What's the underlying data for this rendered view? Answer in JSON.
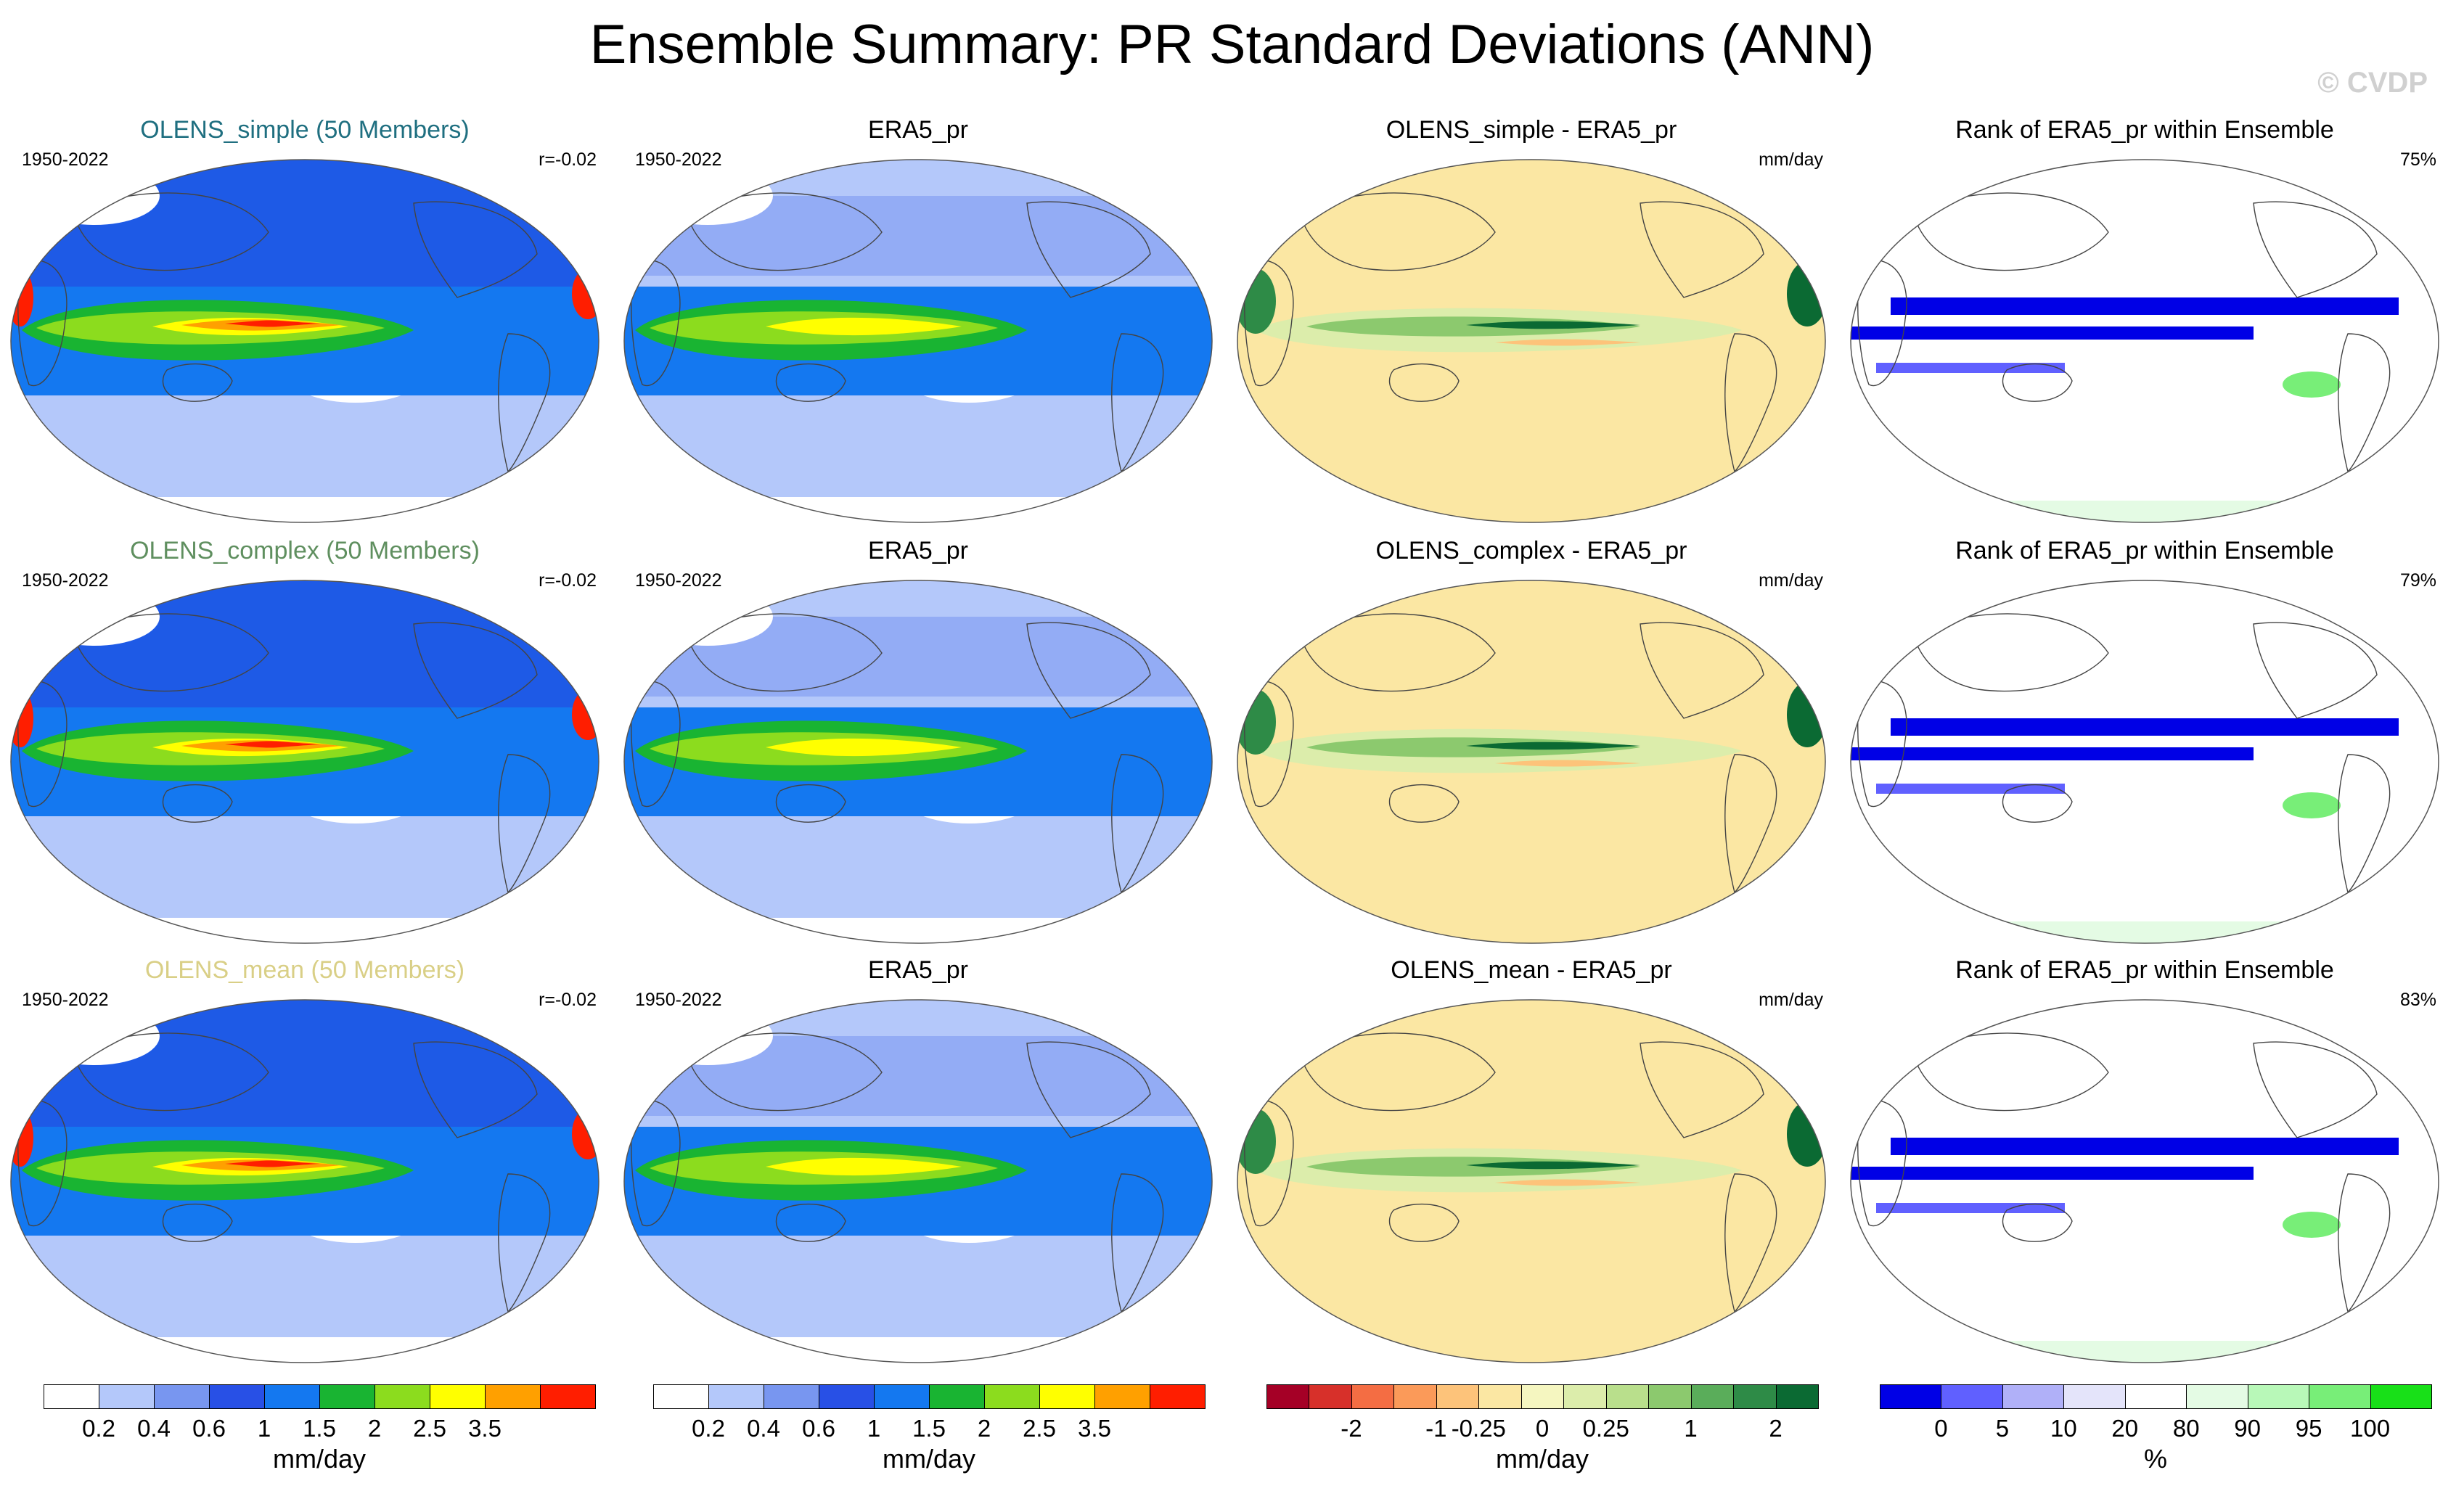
{
  "title": "Ensemble Summary: PR Standard Deviations (ANN)",
  "watermark": "© CVDP",
  "rows": [
    {
      "model_title": "OLENS_simple (50 Members)",
      "model_color": "#1f6f80",
      "period": "1950-2022",
      "corr": "r=-0.02",
      "obs_title": "ERA5_pr",
      "obs_period": "1950-2022",
      "diff_title": "OLENS_simple - ERA5_pr",
      "diff_unit": "mm/day",
      "rank_title": "Rank of ERA5_pr within Ensemble",
      "rank_pct": "75%"
    },
    {
      "model_title": "OLENS_complex (50 Members)",
      "model_color": "#5f8f5f",
      "period": "1950-2022",
      "corr": "r=-0.02",
      "obs_title": "ERA5_pr",
      "obs_period": "1950-2022",
      "diff_title": "OLENS_complex - ERA5_pr",
      "diff_unit": "mm/day",
      "rank_title": "Rank of ERA5_pr within Ensemble",
      "rank_pct": "79%"
    },
    {
      "model_title": "OLENS_mean (50 Members)",
      "model_color": "#d9cf86",
      "period": "1950-2022",
      "corr": "r=-0.02",
      "obs_title": "ERA5_pr",
      "obs_period": "1950-2022",
      "diff_title": "OLENS_mean - ERA5_pr",
      "diff_unit": "mm/day",
      "rank_title": "Rank of ERA5_pr within Ensemble",
      "rank_pct": "83%"
    }
  ],
  "colorbars": {
    "std": {
      "colors": [
        "#ffffff",
        "#b4c8fa",
        "#7896f0",
        "#2850e6",
        "#1478f0",
        "#19b432",
        "#8cdc1e",
        "#ffff00",
        "#ffa000",
        "#ff1e00"
      ],
      "labels": [
        "0.2",
        "0.4",
        "0.6",
        "1",
        "1.5",
        "2",
        "2.5",
        "3.5"
      ],
      "unit": "mm/day"
    },
    "std2": {
      "labels": [
        "0.2",
        "0.4",
        "0.6",
        "1",
        "1.5",
        "2",
        "2.5",
        "3.5"
      ],
      "unit": "mm/day"
    },
    "diff": {
      "colors": [
        "#a50026",
        "#d7302a",
        "#f46d43",
        "#fb9a59",
        "#fdc37a",
        "#fbe7a3",
        "#f5f6c0",
        "#dcedab",
        "#b9df8c",
        "#8cc96e",
        "#5aad5a",
        "#2e8b47",
        "#0b6a33"
      ],
      "labels": [
        "-2",
        "-1",
        "-0.25",
        "0",
        "0.25",
        "1",
        "2"
      ],
      "unit": "mm/day"
    },
    "rank": {
      "colors": [
        "#0000e6",
        "#6060ff",
        "#b0b0f8",
        "#e4e4fa",
        "#ffffff",
        "#e4fbe4",
        "#b8f8b8",
        "#78ee78",
        "#18e018"
      ],
      "labels": [
        "0",
        "5",
        "10",
        "20",
        "80",
        "90",
        "95",
        "100"
      ],
      "unit": "%"
    }
  }
}
